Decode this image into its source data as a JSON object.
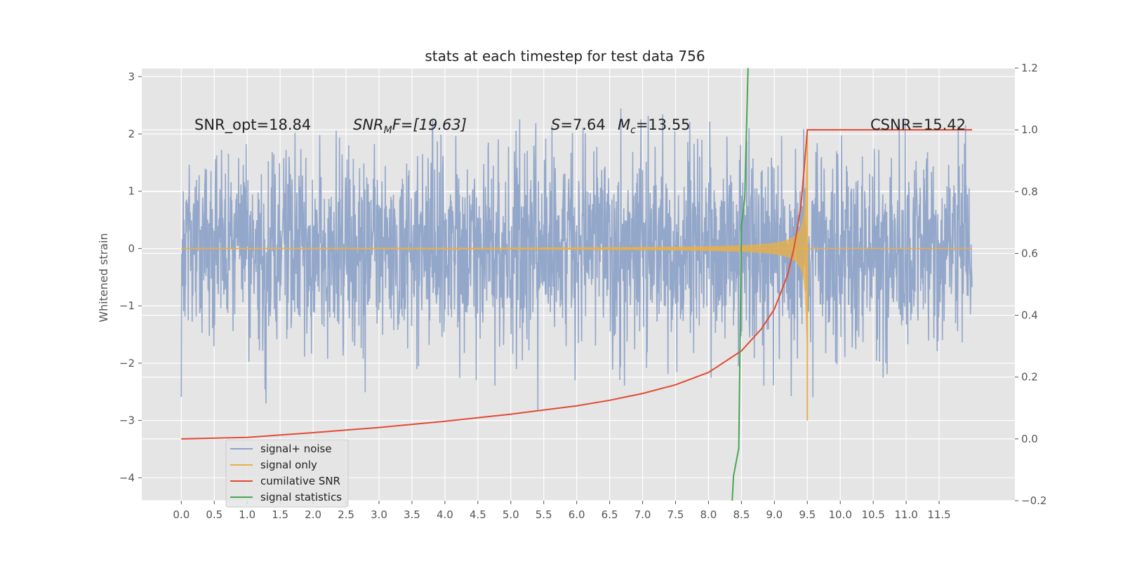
{
  "chart_data": {
    "type": "line",
    "title": "stats at each timestep for test data 756",
    "ylabel": "Whitened strain",
    "x_ticks": [
      "0.0",
      "0.5",
      "1.0",
      "1.5",
      "2.0",
      "2.5",
      "3.0",
      "3.5",
      "4.0",
      "4.5",
      "5.0",
      "5.5",
      "6.0",
      "6.5",
      "7.0",
      "7.5",
      "8.0",
      "8.5",
      "9.0",
      "9.5",
      "10.0",
      "10.5",
      "11.0",
      "11.5"
    ],
    "xlim": [
      -0.6,
      12.65
    ],
    "ylim_left": [
      -4.4,
      3.15
    ],
    "ylim_right": [
      -0.2,
      1.2
    ],
    "y_ticks_left": [
      "3",
      "2",
      "1",
      "0",
      "−1",
      "−2",
      "−3",
      "−4"
    ],
    "y_ticks_right": [
      "1.2",
      "1.0",
      "0.8",
      "0.6",
      "0.4",
      "0.2",
      "0.0",
      "−0.2"
    ],
    "annotations": {
      "snr_opt": "SNR_opt=18.84",
      "snr_mf_base": "SNR",
      "snr_mf_sub": "M",
      "snr_mf_tail": "F=[19.63]",
      "s_label": "S",
      "s_value": "=7.64",
      "mc_base": "M",
      "mc_sub": "c",
      "mc_value": "=13.55",
      "csnr": "CSNR=15.42"
    },
    "legend": {
      "placement": "lower-left",
      "entries": [
        {
          "label": "signal+ noise",
          "color": "#8ea3c8"
        },
        {
          "label": "signal only",
          "color": "#e8b04a"
        },
        {
          "label": "cumilative SNR",
          "color": "#e24a33"
        },
        {
          "label": "signal statistics",
          "color": "#4aa552"
        }
      ]
    },
    "series": [
      {
        "name": "signal+ noise",
        "axis": "left",
        "description_range": [
          0.0,
          12.0
        ],
        "amplitude": 1.2,
        "color": "#8ea3c8"
      },
      {
        "name": "signal only",
        "axis": "left",
        "chirp_end": 9.5,
        "peak": 3.0,
        "color": "#e8b04a"
      },
      {
        "name": "cumilative SNR",
        "axis": "right",
        "color": "#e24a33",
        "x": [
          0.0,
          1.0,
          2.0,
          3.0,
          4.0,
          5.0,
          6.0,
          6.5,
          7.0,
          7.5,
          8.0,
          8.5,
          8.8,
          9.0,
          9.2,
          9.3,
          9.4,
          9.45,
          9.5,
          12.0
        ],
        "y": [
          0.0,
          0.005,
          0.02,
          0.037,
          0.057,
          0.08,
          0.107,
          0.125,
          0.147,
          0.175,
          0.215,
          0.285,
          0.355,
          0.42,
          0.53,
          0.62,
          0.75,
          0.87,
          1.0,
          1.0
        ]
      },
      {
        "name": "signal statistics",
        "axis": "right",
        "color": "#4aa552",
        "x": [
          8.36,
          8.38,
          8.46,
          8.5,
          8.55,
          8.6
        ],
        "y": [
          -0.2,
          -0.12,
          -0.03,
          0.69,
          0.78,
          1.2
        ]
      }
    ],
    "grid": true,
    "background": "#e5e5e5"
  }
}
